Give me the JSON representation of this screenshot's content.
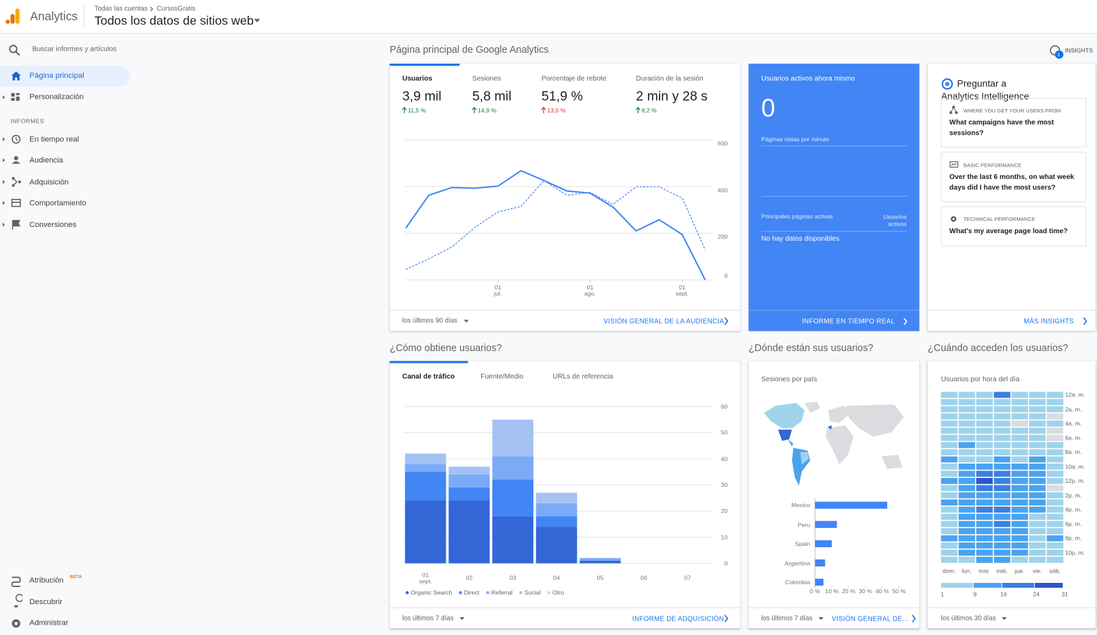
{
  "header": {
    "app": "Analytics",
    "breadcrumb": [
      "Todas las cuentas",
      "CursosGratis"
    ],
    "view": "Todos los datos de sitios web"
  },
  "sidebar": {
    "search": "Buscar informes y artículos",
    "home": "Página principal",
    "custom": "Personalización",
    "section": "INFORMES",
    "reports": [
      "En tiempo real",
      "Audiencia",
      "Adquisición",
      "Comportamiento",
      "Conversiones"
    ],
    "attribution": "Atribución",
    "badge": "BETA",
    "discover": "Descubrir",
    "admin": "Administrar"
  },
  "page": {
    "title": "Página principal de Google Analytics",
    "insights": "INSIGHTS",
    "insights_count": "1"
  },
  "audience": {
    "metrics": [
      {
        "name": "Usuarios",
        "value": "3,9 mil",
        "change": "11,5 %",
        "color": "#188038"
      },
      {
        "name": "Sesiones",
        "value": "5,8 mil",
        "change": "14,9 %",
        "color": "#188038"
      },
      {
        "name": "Porcentaje de rebote",
        "value": "51,9 %",
        "change": "13,0 %",
        "color": "#d93025"
      },
      {
        "name": "Duración de la sesión",
        "value": "2 min y 28 s",
        "change": "8,2 %",
        "color": "#188038"
      }
    ],
    "chart": {
      "type": "line",
      "categories": [
        null,
        null,
        null,
        null,
        "01\njul.",
        null,
        null,
        null,
        "01\nago.",
        null,
        null,
        null,
        "01\nsept.",
        null
      ],
      "series": [
        {
          "color": "#4285f4",
          "values": [
            222,
            363,
            396,
            393,
            402,
            468,
            426,
            381,
            372,
            312,
            210,
            258,
            195,
            0
          ]
        },
        {
          "color": "#4285f4",
          "dashed": true,
          "values": [
            45,
            90,
            141,
            225,
            291,
            315,
            426,
            363,
            375,
            324,
            399,
            399,
            351,
            129
          ]
        }
      ],
      "ylim": [
        0,
        600
      ],
      "yticks": [
        0,
        200,
        400,
        600
      ],
      "grid": true
    },
    "range": "los últimos 90 días",
    "link": "VISIÓN GENERAL DE LA AUDIENCIA"
  },
  "realtime": {
    "title": "Usuarios activos ahora mismo",
    "value": 0,
    "subtitle": "Páginas vistas por minuto",
    "pages": "Principales páginas activas",
    "users": "Usuarios\nactivos",
    "empty": "No hay datos disponibles",
    "link": "INFORME EN TIEMPO REAL"
  },
  "intelligence": {
    "title": "Preguntar a\nAnalytics Intelligence",
    "questions": [
      {
        "category": "WHERE YOU GET YOUR USERS FROM",
        "text": "What campaigns have the most sessions?"
      },
      {
        "category": "BASIC PERFORMANCE",
        "text": "Over the last 6 months, on what week days did I have the most users?"
      },
      {
        "category": "TECHNICAL PERFORMANCE",
        "text": "What's my average page load time?"
      }
    ],
    "link": "MÁS INSIGHTS"
  },
  "acquisition": {
    "title": "¿Cómo obtiene usuarios?",
    "tabs": [
      "Canal de tráfico",
      "Fuente/Medio",
      "URLs de referencia"
    ],
    "chart": {
      "type": "bar",
      "stacked": true,
      "categories": [
        "01\nsept.",
        "02",
        "03",
        "04",
        "05",
        "06",
        "07"
      ],
      "series": [
        {
          "name": "Organic Search",
          "color": "#3367d6",
          "values": [
            24,
            24,
            18,
            14,
            1,
            0,
            0
          ]
        },
        {
          "name": "Direct",
          "color": "#4285f4",
          "values": [
            11,
            5,
            14,
            4,
            0,
            0,
            0
          ]
        },
        {
          "name": "Referral",
          "color": "#7baaf7",
          "values": [
            3,
            5,
            9,
            5,
            1,
            0,
            0
          ]
        },
        {
          "name": "Social",
          "color": "#a4c2f4",
          "values": [
            4,
            3,
            14,
            4,
            0,
            0,
            0
          ]
        },
        {
          "name": "Otro",
          "color": "#c6dafc",
          "values": [
            0,
            0,
            0,
            0,
            0,
            0,
            0
          ]
        }
      ],
      "ylim": [
        0,
        60
      ],
      "yticks": [
        0,
        10,
        20,
        30,
        40,
        50,
        60
      ],
      "grid": true
    },
    "range": "los últimos 7 días",
    "link": "INFORME DE ADQUISICIÓN"
  },
  "geo": {
    "title": "¿Dónde están sus usuarios?",
    "subtitle": "Sesiones por país",
    "chart": {
      "type": "hbar",
      "categories": [
        "Mexico",
        "Peru",
        "Spain",
        "Argentina",
        "Colombia"
      ],
      "values": [
        43,
        13,
        10,
        6,
        5
      ],
      "color": "#4285f4",
      "xlim": [
        0,
        50
      ],
      "xticks": [
        {
          "value": 0,
          "label": "0 %"
        },
        {
          "value": 10,
          "label": "10 %"
        },
        {
          "value": 20,
          "label": "20 %"
        },
        {
          "value": 30,
          "label": "30 %"
        },
        {
          "value": 40,
          "label": "40 %"
        },
        {
          "value": 50,
          "label": "50 %"
        }
      ]
    },
    "range": "los últimos 7 días",
    "link": "VISIÓN GENERAL DE..."
  },
  "time": {
    "title": "¿Cuándo acceden los usuarios?",
    "subtitle": "Usuarios por hora del día",
    "chart": {
      "type": "heatmap",
      "x": [
        "dom.",
        "lun.",
        "mar.",
        "mié.",
        "jue.",
        "vie.",
        "sáb."
      ],
      "y": [
        "12a. m.",
        null,
        "2a. m.",
        null,
        "4a. m.",
        null,
        "6a. m.",
        null,
        "8a. m.",
        null,
        "10a. m.",
        null,
        "12p. m.",
        null,
        "2p. m.",
        null,
        "4p. m.",
        null,
        "6p. m.",
        null,
        "8p. m.",
        null,
        "10p. m.",
        null
      ],
      "values": [
        [
          6,
          7,
          6,
          18,
          7,
          6,
          6
        ],
        [
          6,
          6,
          6,
          7,
          6,
          6,
          6
        ],
        [
          5,
          6,
          6,
          6,
          6,
          6,
          6
        ],
        [
          5,
          5,
          6,
          5,
          6,
          6,
          0
        ],
        [
          5,
          5,
          5,
          5,
          0,
          5,
          5
        ],
        [
          5,
          5,
          5,
          5,
          5,
          5,
          0
        ],
        [
          5,
          5,
          5,
          5,
          6,
          5,
          0
        ],
        [
          6,
          12,
          6,
          6,
          6,
          5,
          6
        ],
        [
          6,
          6,
          6,
          6,
          6,
          6,
          6
        ],
        [
          12,
          6,
          6,
          13,
          7,
          12,
          6
        ],
        [
          6,
          12,
          12,
          13,
          12,
          12,
          6
        ],
        [
          6,
          13,
          18,
          18,
          13,
          13,
          6
        ],
        [
          12,
          13,
          25,
          20,
          13,
          12,
          6
        ],
        [
          6,
          13,
          18,
          18,
          13,
          13,
          0
        ],
        [
          6,
          12,
          13,
          13,
          12,
          13,
          6
        ],
        [
          12,
          13,
          13,
          13,
          13,
          12,
          6
        ],
        [
          6,
          13,
          18,
          18,
          13,
          12,
          6
        ],
        [
          6,
          12,
          13,
          13,
          12,
          6,
          6
        ],
        [
          6,
          13,
          13,
          18,
          13,
          6,
          6
        ],
        [
          6,
          12,
          13,
          13,
          12,
          6,
          6
        ],
        [
          12,
          12,
          13,
          13,
          12,
          6,
          12
        ],
        [
          6,
          12,
          12,
          13,
          12,
          6,
          6
        ],
        [
          6,
          12,
          13,
          13,
          12,
          6,
          6
        ],
        [
          6,
          6,
          12,
          12,
          6,
          6,
          6
        ]
      ],
      "scale": {
        "lim": [
          1,
          31
        ],
        "ticks": [
          1,
          9,
          16,
          24,
          31
        ],
        "colors": [
          "#9fd3ec",
          "#4aa3ee",
          "#3c7fe0",
          "#2b56c6"
        ],
        "empty_color": "#dadce0"
      }
    },
    "range": "los últimos 30 días"
  }
}
